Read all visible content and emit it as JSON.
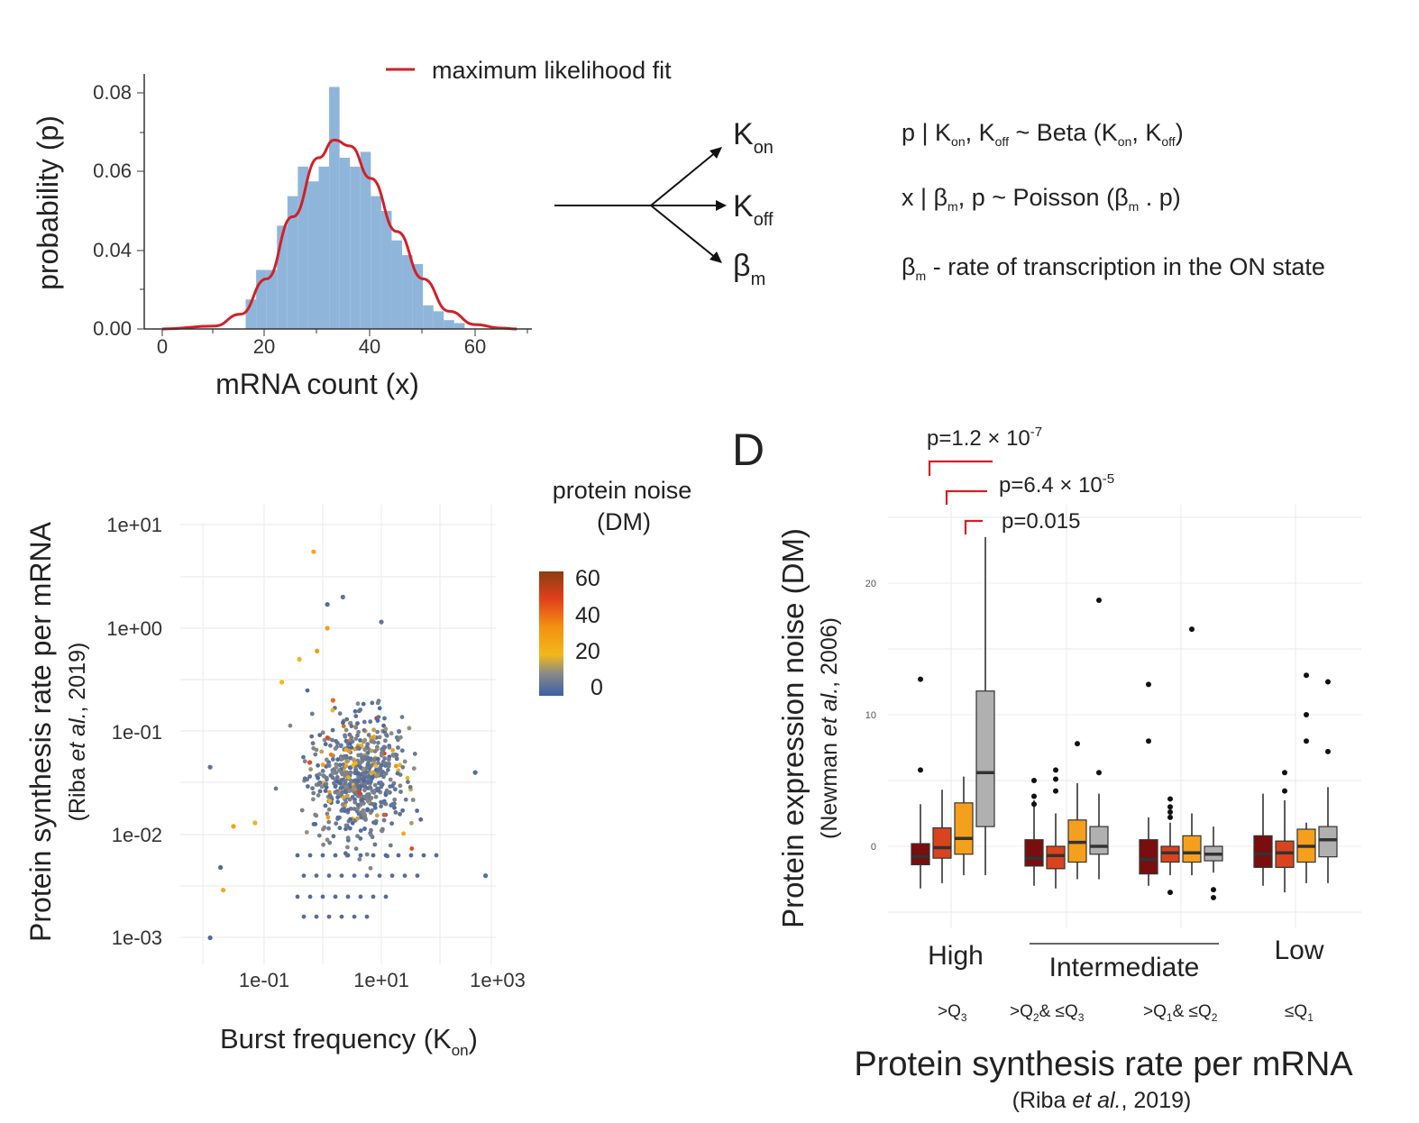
{
  "panel_d_letter": "D",
  "hist": {
    "legend": "maximum likelihood fit",
    "xlabel": "mRNA count (x)",
    "ylabel": "probability (p)",
    "xticks": [
      "0",
      "20",
      "40",
      "60"
    ],
    "yticks": [
      "0.00",
      "0.04",
      "0.06",
      "0.08"
    ]
  },
  "params": {
    "a_sub": "on",
    "b_sub": "off",
    "c_sub": "m"
  },
  "equations": {
    "eq1_left": "p | K",
    "eq1_beta": "Beta (K",
    "eq2_left": "x | β",
    "eq2_pois": "Poisson (β",
    "eq3_desc": "- rate of transcription in the ON state"
  },
  "scatter": {
    "xlabel_main": "Burst frequency (K",
    "xlabel_sub": "on",
    "ylabel_main": "Protein synthesis rate per mRNA",
    "ylabel_cite_pre": "(Riba ",
    "ylabel_cite_em": "et al.",
    "ylabel_cite_post": ", 2019)",
    "xticks": [
      "1e-01",
      "1e+01",
      "1e+03"
    ],
    "yticks": [
      "1e+01",
      "1e+00",
      "1e-01",
      "1e-02",
      "1e-03"
    ],
    "colorbar_title_1": "protein noise",
    "colorbar_title_2": "(DM)",
    "colorbar_ticks": [
      "60",
      "40",
      "20",
      "0"
    ]
  },
  "boxplot": {
    "ylabel_main": "Protein expression noise (DM)",
    "ylabel_cite_pre": "(Newman ",
    "ylabel_cite_em": "et al.",
    "ylabel_cite_post": ", 2006)",
    "xlabel_main": "Protein synthesis rate per mRNA",
    "xlabel_cite_pre": "(Riba ",
    "xlabel_cite_em": "et al.",
    "xlabel_cite_post": ", 2019)",
    "yticks": [
      "0",
      "10",
      "20"
    ],
    "groups": [
      "High",
      "Intermediate",
      "Low"
    ],
    "quartiles": [
      ">Q",
      ">Q",
      "& ≤Q",
      ">Q",
      "& ≤Q",
      "≤Q"
    ],
    "pvals": [
      "p=1.2 × 10",
      "p=6.4 × 10",
      "p=0.015"
    ],
    "pexp": [
      "-7",
      "-5"
    ]
  },
  "chart_data": [
    {
      "type": "bar",
      "xlabel": "mRNA count (x)",
      "ylabel": "probability (p)",
      "xlim": [
        0,
        70
      ],
      "ylim": [
        0,
        0.085
      ],
      "bin_width": 2,
      "categories": [
        16,
        18,
        20,
        22,
        24,
        26,
        28,
        30,
        32,
        34,
        36,
        38,
        40,
        42,
        44,
        46,
        48,
        50,
        52,
        54,
        56
      ],
      "values": [
        0.01,
        0.02,
        0.02,
        0.035,
        0.045,
        0.055,
        0.05,
        0.055,
        0.082,
        0.058,
        0.055,
        0.06,
        0.045,
        0.04,
        0.03,
        0.025,
        0.022,
        0.008,
        0.006,
        0.003,
        0.002
      ],
      "series": [
        {
          "name": "maximum likelihood fit",
          "type": "line",
          "x": [
            0,
            10,
            15,
            20,
            25,
            30,
            33,
            36,
            40,
            45,
            50,
            55,
            60,
            65,
            68
          ],
          "values": [
            0.0,
            0.001,
            0.005,
            0.017,
            0.038,
            0.058,
            0.064,
            0.062,
            0.051,
            0.033,
            0.017,
            0.006,
            0.0015,
            0.0003,
            0.0
          ]
        }
      ]
    },
    {
      "type": "scatter",
      "xlabel": "Burst frequency (Kon)",
      "ylabel": "Protein synthesis rate per mRNA",
      "xscale": "log",
      "yscale": "log",
      "xlim": [
        0.005,
        1000
      ],
      "ylim": [
        0.001,
        10
      ],
      "colorbar": {
        "title": "protein noise (DM)",
        "range": [
          0,
          60
        ]
      },
      "points": [
        {
          "x": 0.7,
          "y": 5.5,
          "c": 25
        },
        {
          "x": 2.2,
          "y": 2.0,
          "c": 5
        },
        {
          "x": 1.2,
          "y": 1.7,
          "c": 3
        },
        {
          "x": 1.2,
          "y": 1.0,
          "c": 28
        },
        {
          "x": 10,
          "y": 1.15,
          "c": 5
        },
        {
          "x": 0.012,
          "y": 0.045,
          "c": 4
        },
        {
          "x": 0.02,
          "y": 0.0029,
          "c": 25
        },
        {
          "x": 0.07,
          "y": 0.013,
          "c": 22
        },
        {
          "x": 0.03,
          "y": 0.012,
          "c": 28
        },
        {
          "x": 0.012,
          "y": 0.001,
          "c": 2
        },
        {
          "x": 0.018,
          "y": 0.0048,
          "c": 2
        },
        {
          "x": 400,
          "y": 0.04,
          "c": 3
        },
        {
          "x": 600,
          "y": 0.004,
          "c": 3
        },
        {
          "x": 0.2,
          "y": 0.3,
          "c": 20
        },
        {
          "x": 0.4,
          "y": 0.5,
          "c": 22
        },
        {
          "x": 0.8,
          "y": 0.6,
          "c": 30
        },
        {
          "x": 1.5,
          "y": 0.2,
          "c": 40
        },
        {
          "x": 0.6,
          "y": 0.05,
          "c": 45
        },
        {
          "x": 3,
          "y": 0.04,
          "c": 8
        },
        {
          "x": 5,
          "y": 0.08,
          "c": 12
        },
        {
          "x": 20,
          "y": 0.1,
          "c": 6
        }
      ]
    },
    {
      "type": "box",
      "ylabel": "Protein expression noise (DM)",
      "xlabel": "Protein synthesis rate per mRNA",
      "ylim": [
        -5,
        25
      ],
      "groups": [
        {
          "name": "High",
          "quartile": ">Q3",
          "boxes": [
            {
              "color": "#7a0d0d",
              "q1": -1.4,
              "median": -0.8,
              "q3": 0.2,
              "whisker_low": -3.2,
              "whisker_high": 3.2,
              "outliers": [
                12.7,
                5.8
              ]
            },
            {
              "color": "#d9431e",
              "q1": -0.9,
              "median": -0.1,
              "q3": 1.4,
              "whisker_low": -2.8,
              "whisker_high": 4.3,
              "outliers": []
            },
            {
              "color": "#f5a01d",
              "q1": -0.6,
              "median": 0.6,
              "q3": 3.3,
              "whisker_low": -2.2,
              "whisker_high": 5.3,
              "outliers": []
            },
            {
              "color": "#b0b0b0",
              "q1": 1.5,
              "median": 5.6,
              "q3": 11.8,
              "whisker_low": -2.2,
              "whisker_high": 23.5,
              "outliers": []
            }
          ]
        },
        {
          "name": "Intermediate",
          "quartile": ">Q2 & ≤Q3",
          "boxes": [
            {
              "color": "#7a0d0d",
              "q1": -1.5,
              "median": -0.9,
              "q3": 0.5,
              "whisker_low": -3.0,
              "whisker_high": 3.5,
              "outliers": [
                5.0,
                3.8,
                3.2
              ]
            },
            {
              "color": "#d9431e",
              "q1": -1.7,
              "median": -0.7,
              "q3": 0.0,
              "whisker_low": -3.2,
              "whisker_high": 2.5,
              "outliers": [
                5.8,
                5.1,
                4.2
              ]
            },
            {
              "color": "#f5a01d",
              "q1": -1.2,
              "median": 0.3,
              "q3": 2.0,
              "whisker_low": -2.5,
              "whisker_high": 4.8,
              "outliers": [
                7.8
              ]
            },
            {
              "color": "#b0b0b0",
              "q1": -0.6,
              "median": 0.0,
              "q3": 1.5,
              "whisker_low": -2.5,
              "whisker_high": 4.0,
              "outliers": [
                18.7,
                5.6
              ]
            }
          ]
        },
        {
          "name": "Intermediate",
          "quartile": ">Q1 & ≤Q2",
          "boxes": [
            {
              "color": "#7a0d0d",
              "q1": -2.1,
              "median": -1.0,
              "q3": 0.5,
              "whisker_low": -3.0,
              "whisker_high": 2.2,
              "outliers": [
                12.3,
                8.0
              ]
            },
            {
              "color": "#d9431e",
              "q1": -1.2,
              "median": -0.5,
              "q3": 0.0,
              "whisker_low": -2.2,
              "whisker_high": 1.8,
              "outliers": [
                3.6,
                3.0,
                2.6,
                2.2,
                -3.5
              ]
            },
            {
              "color": "#f5a01d",
              "q1": -1.2,
              "median": -0.5,
              "q3": 0.8,
              "whisker_low": -2.2,
              "whisker_high": 2.5,
              "outliers": [
                16.5
              ]
            },
            {
              "color": "#b0b0b0",
              "q1": -1.1,
              "median": -0.6,
              "q3": 0.0,
              "whisker_low": -2.0,
              "whisker_high": 1.5,
              "outliers": [
                -3.3,
                -3.9
              ]
            }
          ]
        },
        {
          "name": "Low",
          "quartile": "≤Q1",
          "boxes": [
            {
              "color": "#7a0d0d",
              "q1": -1.6,
              "median": -0.6,
              "q3": 0.8,
              "whisker_low": -3.0,
              "whisker_high": 4.0,
              "outliers": []
            },
            {
              "color": "#d9431e",
              "q1": -1.6,
              "median": -0.5,
              "q3": 0.4,
              "whisker_low": -3.5,
              "whisker_high": 3.5,
              "outliers": [
                5.6,
                4.2
              ]
            },
            {
              "color": "#f5a01d",
              "q1": -1.2,
              "median": 0.0,
              "q3": 1.3,
              "whisker_low": -2.8,
              "whisker_high": 1.8,
              "outliers": [
                13.0,
                10.0,
                8.0
              ]
            },
            {
              "color": "#b0b0b0",
              "q1": -0.8,
              "median": 0.5,
              "q3": 1.5,
              "whisker_low": -2.8,
              "whisker_high": 4.5,
              "outliers": [
                12.5,
                7.2
              ]
            }
          ]
        }
      ],
      "comparisons": [
        {
          "label": "p=1.2 × 10-7"
        },
        {
          "label": "p=6.4 × 10-5"
        },
        {
          "label": "p=0.015"
        }
      ]
    }
  ]
}
